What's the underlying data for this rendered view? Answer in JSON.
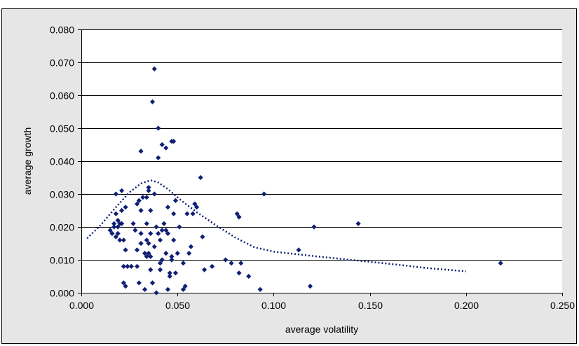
{
  "chart_data": {
    "type": "scatter",
    "title": "",
    "xlabel": "average volatility",
    "ylabel": "average growth",
    "xlim": [
      0,
      0.25
    ],
    "ylim": [
      0,
      0.08
    ],
    "x_ticks": [
      "0.000",
      "0.050",
      "0.100",
      "0.150",
      "0.200",
      "0.250"
    ],
    "y_ticks": [
      "0.000",
      "0.010",
      "0.020",
      "0.030",
      "0.040",
      "0.050",
      "0.060",
      "0.070",
      "0.080"
    ],
    "grid": "horizontal",
    "legend": "none",
    "colors": {
      "background": "#e6e6e6",
      "plot_area": "#ffffff",
      "grid": "#000000",
      "marker": "#0f1f75",
      "trendline": "#0f1f75"
    },
    "series": [
      {
        "marker": "diamond",
        "points": [
          [
            0.015,
            0.019
          ],
          [
            0.016,
            0.018
          ],
          [
            0.017,
            0.02
          ],
          [
            0.017,
            0.021
          ],
          [
            0.018,
            0.03
          ],
          [
            0.018,
            0.024
          ],
          [
            0.018,
            0.017
          ],
          [
            0.019,
            0.02
          ],
          [
            0.019,
            0.022
          ],
          [
            0.019,
            0.018
          ],
          [
            0.02,
            0.016
          ],
          [
            0.02,
            0.021
          ],
          [
            0.021,
            0.031
          ],
          [
            0.021,
            0.025
          ],
          [
            0.021,
            0.021
          ],
          [
            0.022,
            0.003
          ],
          [
            0.022,
            0.008
          ],
          [
            0.022,
            0.016
          ],
          [
            0.023,
            0.013
          ],
          [
            0.023,
            0.002
          ],
          [
            0.023,
            0.026
          ],
          [
            0.024,
            0.008
          ],
          [
            0.026,
            0.008
          ],
          [
            0.027,
            0.021
          ],
          [
            0.028,
            0.019
          ],
          [
            0.029,
            0.027
          ],
          [
            0.029,
            0.013
          ],
          [
            0.029,
            0.008
          ],
          [
            0.03,
            0.028
          ],
          [
            0.03,
            0.003
          ],
          [
            0.031,
            0.025
          ],
          [
            0.031,
            0.018
          ],
          [
            0.031,
            0.043
          ],
          [
            0.031,
            0.015
          ],
          [
            0.032,
            0.029
          ],
          [
            0.033,
            0.012
          ],
          [
            0.033,
            0.001
          ],
          [
            0.034,
            0.029
          ],
          [
            0.034,
            0.021
          ],
          [
            0.034,
            0.016
          ],
          [
            0.034,
            0.011
          ],
          [
            0.035,
            0.031
          ],
          [
            0.035,
            0.032
          ],
          [
            0.035,
            0.012
          ],
          [
            0.035,
            0.015
          ],
          [
            0.036,
            0.025
          ],
          [
            0.036,
            0.018
          ],
          [
            0.036,
            0.007
          ],
          [
            0.036,
            0.011
          ],
          [
            0.037,
            0.003
          ],
          [
            0.037,
            0.058
          ],
          [
            0.038,
            0.03
          ],
          [
            0.038,
            0.068
          ],
          [
            0.038,
            0.014
          ],
          [
            0.039,
            0.0
          ],
          [
            0.039,
            0.02
          ],
          [
            0.04,
            0.041
          ],
          [
            0.04,
            0.05
          ],
          [
            0.04,
            0.018
          ],
          [
            0.041,
            0.009
          ],
          [
            0.041,
            0.007
          ],
          [
            0.041,
            0.016
          ],
          [
            0.042,
            0.045
          ],
          [
            0.042,
            0.019
          ],
          [
            0.042,
            0.01
          ],
          [
            0.043,
            0.021
          ],
          [
            0.044,
            0.044
          ],
          [
            0.044,
            0.019
          ],
          [
            0.044,
            0.012
          ],
          [
            0.045,
            0.001
          ],
          [
            0.045,
            0.026
          ],
          [
            0.045,
            0.018
          ],
          [
            0.046,
            0.006
          ],
          [
            0.046,
            0.005
          ],
          [
            0.047,
            0.046
          ],
          [
            0.047,
            0.01
          ],
          [
            0.047,
            0.011
          ],
          [
            0.048,
            0.046
          ],
          [
            0.048,
            0.024
          ],
          [
            0.048,
            0.016
          ],
          [
            0.049,
            0.028
          ],
          [
            0.049,
            0.006
          ],
          [
            0.05,
            0.012
          ],
          [
            0.051,
            0.02
          ],
          [
            0.053,
            0.009
          ],
          [
            0.053,
            0.001
          ],
          [
            0.054,
            0.002
          ],
          [
            0.055,
            0.024
          ],
          [
            0.056,
            0.012
          ],
          [
            0.057,
            0.014
          ],
          [
            0.058,
            0.024
          ],
          [
            0.059,
            0.027
          ],
          [
            0.06,
            0.026
          ],
          [
            0.062,
            0.035
          ],
          [
            0.063,
            0.017
          ],
          [
            0.064,
            0.007
          ],
          [
            0.068,
            0.008
          ],
          [
            0.075,
            0.01
          ],
          [
            0.078,
            0.009
          ],
          [
            0.081,
            0.024
          ],
          [
            0.082,
            0.023
          ],
          [
            0.082,
            0.006
          ],
          [
            0.083,
            0.009
          ],
          [
            0.087,
            0.005
          ],
          [
            0.093,
            0.001
          ],
          [
            0.095,
            0.03
          ],
          [
            0.113,
            0.013
          ],
          [
            0.119,
            0.002
          ],
          [
            0.121,
            0.02
          ],
          [
            0.144,
            0.021
          ],
          [
            0.218,
            0.009
          ]
        ]
      }
    ],
    "trendline": {
      "style": "dotted",
      "points": [
        [
          0.003,
          0.0165
        ],
        [
          0.01,
          0.0205
        ],
        [
          0.018,
          0.026
        ],
        [
          0.025,
          0.0305
        ],
        [
          0.031,
          0.0332
        ],
        [
          0.036,
          0.0342
        ],
        [
          0.04,
          0.0335
        ],
        [
          0.045,
          0.0315
        ],
        [
          0.052,
          0.028
        ],
        [
          0.06,
          0.0245
        ],
        [
          0.07,
          0.0205
        ],
        [
          0.08,
          0.0168
        ],
        [
          0.09,
          0.0138
        ],
        [
          0.1,
          0.0125
        ],
        [
          0.12,
          0.0112
        ],
        [
          0.14,
          0.01
        ],
        [
          0.16,
          0.0088
        ],
        [
          0.18,
          0.0075
        ],
        [
          0.2,
          0.0065
        ]
      ]
    }
  }
}
